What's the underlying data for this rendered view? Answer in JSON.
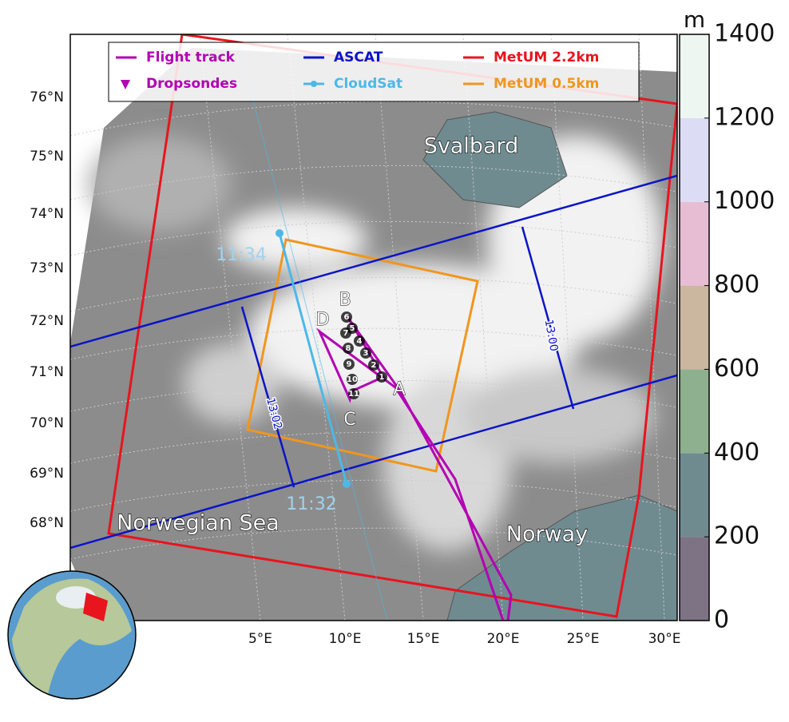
{
  "map": {
    "legend": [
      {
        "label": "Flight track",
        "color": "#b300b3",
        "marker": "line"
      },
      {
        "label": "Dropsondes",
        "color": "#b300b3",
        "marker": "triangle"
      },
      {
        "label": "ASCAT",
        "color": "#0a14c8",
        "marker": "line"
      },
      {
        "label": "CloudSat",
        "color": "#4cb8e8",
        "marker": "dot"
      },
      {
        "label": "MetUM 2.2km",
        "color": "#e8141e",
        "marker": "line"
      },
      {
        "label": "MetUM 0.5km",
        "color": "#f0961e",
        "marker": "line"
      }
    ],
    "lat_labels": [
      "76°N",
      "75°N",
      "74°N",
      "73°N",
      "72°N",
      "71°N",
      "70°N",
      "69°N",
      "68°N"
    ],
    "lon_labels": [
      "5°E",
      "10°E",
      "15°E",
      "20°E",
      "25°E",
      "30°E"
    ],
    "places": [
      "Svalbard",
      "Norwegian Sea",
      "Norway"
    ],
    "waypoints": [
      "A",
      "B",
      "C",
      "D"
    ],
    "times": [
      "11:34",
      "11:32",
      "13:00",
      "13:02"
    ],
    "dropsondes": [
      "1",
      "2",
      "3",
      "4",
      "5",
      "6",
      "7",
      "8",
      "9",
      "10",
      "11"
    ]
  },
  "colorbar": {
    "unit": "m",
    "lim": [
      0,
      1400
    ],
    "ticks": [
      0,
      200,
      400,
      600,
      800,
      1000,
      1200,
      1400
    ],
    "colors": [
      "#7d7384",
      "#6f8b90",
      "#8fb08e",
      "#cbb79f",
      "#e7bdd4",
      "#dcdcf5",
      "#eef6f1"
    ]
  }
}
